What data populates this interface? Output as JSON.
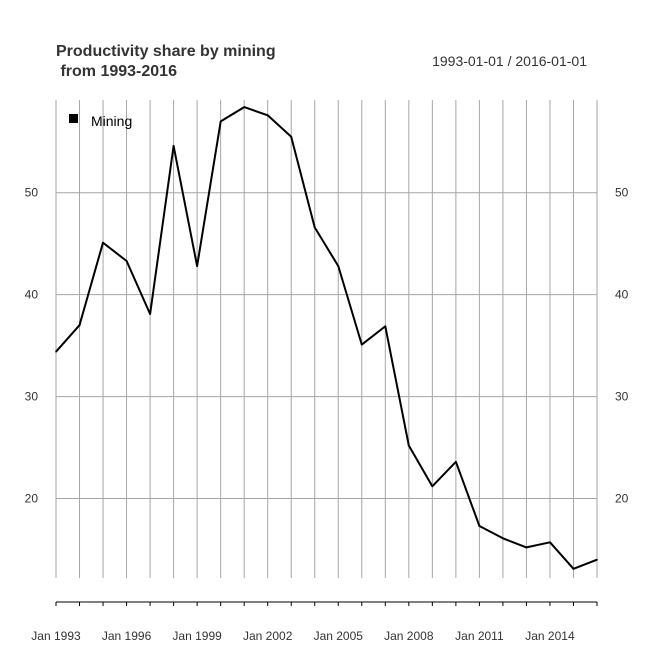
{
  "chart_data": {
    "type": "line",
    "title_line1": "Productivity share by mining",
    "title_line2": " from 1993-2016",
    "date_range": "1993-01-01 / 2016-01-01",
    "x": [
      "1993",
      "1994",
      "1995",
      "1996",
      "1997",
      "1998",
      "1999",
      "2000",
      "2001",
      "2002",
      "2003",
      "2004",
      "2005",
      "2006",
      "2007",
      "2008",
      "2009",
      "2010",
      "2011",
      "2012",
      "2013",
      "2014",
      "2015",
      "2016"
    ],
    "x_tick_labels": [
      "Jan 1993",
      "Jan 1996",
      "Jan 1999",
      "Jan 2002",
      "Jan 2005",
      "Jan 2008",
      "Jan 2011",
      "Jan 2014"
    ],
    "y_ticks": [
      20,
      30,
      40,
      50
    ],
    "ylim": [
      12.2,
      59.1
    ],
    "series": [
      {
        "name": "Mining",
        "color": "#000000",
        "values": [
          34.4,
          37.0,
          45.1,
          43.3,
          38.1,
          54.6,
          42.8,
          57.0,
          58.4,
          57.6,
          55.5,
          46.6,
          42.8,
          35.1,
          36.9,
          25.2,
          21.2,
          23.6,
          17.3,
          16.1,
          15.2,
          15.7,
          13.1,
          14.0
        ]
      }
    ],
    "grid": true,
    "legend_position": "top-left"
  }
}
